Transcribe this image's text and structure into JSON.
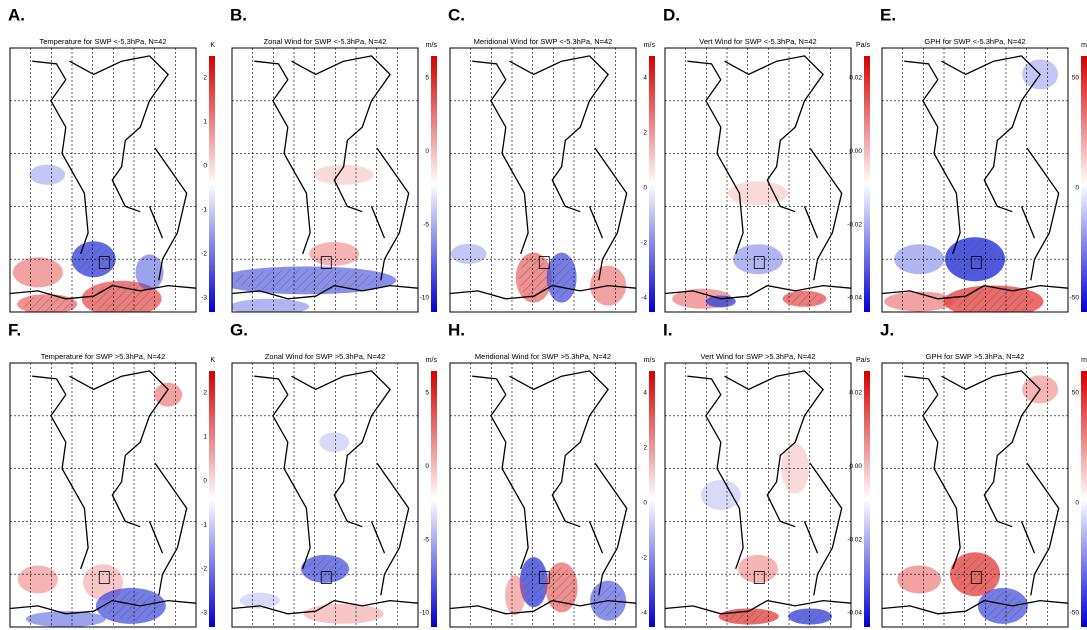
{
  "panels": [
    {
      "letter": "A.",
      "title": "Temperature for SWP <-5.3hPa, N=42",
      "unit": "K",
      "ticks": [
        "2",
        "1",
        "0",
        "-1",
        "-2",
        "-3"
      ]
    },
    {
      "letter": "B.",
      "title": "Zonal Wind for SWP <-5.3hPa, N=42",
      "unit": "m/s",
      "ticks": [
        "5",
        "0",
        "-5",
        "-10"
      ]
    },
    {
      "letter": "C.",
      "title": "Meridional Wind for SWP <-5.3hPa, N=42",
      "unit": "m/s",
      "ticks": [
        "4",
        "2",
        "0",
        "-2",
        "-4"
      ]
    },
    {
      "letter": "D.",
      "title": "Vert Wind for SWP <-5.3hPa, N=42",
      "unit": "Pa/s",
      "ticks": [
        "0.02",
        "0.00",
        "-0.02",
        "-0.04"
      ]
    },
    {
      "letter": "E.",
      "title": "GPH for SWP <-5.3hPa, N=42",
      "unit": "m",
      "ticks": [
        "50",
        "0",
        "-50"
      ]
    },
    {
      "letter": "F.",
      "title": "Temperature for SWP >5.3hPa, N=42",
      "unit": "K",
      "ticks": [
        "2",
        "1",
        "0",
        "-1",
        "-2",
        "-3"
      ]
    },
    {
      "letter": "G.",
      "title": "Zonal Wind for SWP >5.3hPa, N=42",
      "unit": "m/s",
      "ticks": [
        "5",
        "0",
        "-5",
        "-10"
      ]
    },
    {
      "letter": "H.",
      "title": "Meridional Wind for SWP >5.3hPa, N=42",
      "unit": "m/s",
      "ticks": [
        "4",
        "2",
        "0",
        "-2",
        "-4"
      ]
    },
    {
      "letter": "I.",
      "title": "Vert Wind for SWP >5.3hPa, N=42",
      "unit": "Pa/s",
      "ticks": [
        "0.02",
        "0.00",
        "-0.02",
        "-0.04"
      ]
    },
    {
      "letter": "J.",
      "title": "GPH for SWP >5.3hPa, N=42",
      "unit": "m",
      "ticks": [
        "50",
        "0",
        "-50"
      ]
    }
  ]
}
